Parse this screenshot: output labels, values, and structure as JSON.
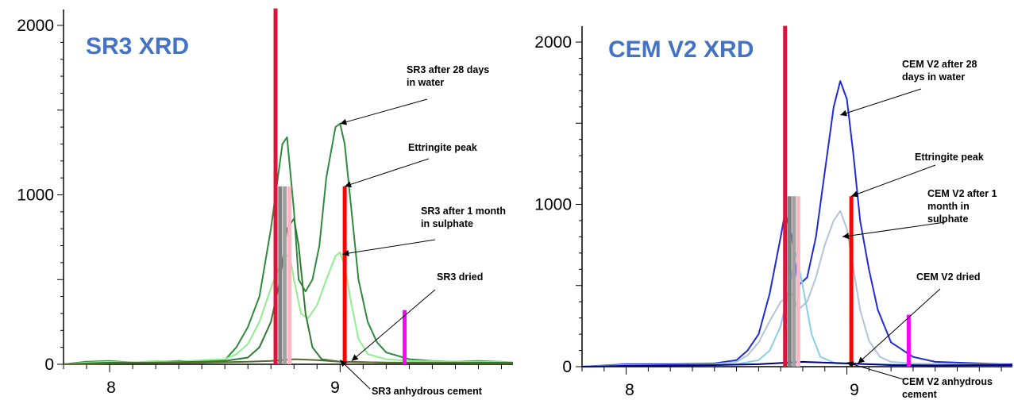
{
  "chart_data": [
    {
      "type": "line",
      "title": "SR3 XRD",
      "xlabel": "",
      "ylabel": "",
      "xlim": [
        7.8,
        9.75
      ],
      "ylim": [
        0,
        2100
      ],
      "x_ticks": [
        "8",
        "9"
      ],
      "y_ticks": [
        "0",
        "1000",
        "2000"
      ],
      "title_color": "#4472c4",
      "series": [
        {
          "name": "SR3 after 28 days in water",
          "color": "#2e8b3e",
          "points": [
            [
              7.8,
              0
            ],
            [
              7.9,
              15
            ],
            [
              8.0,
              20
            ],
            [
              8.1,
              10
            ],
            [
              8.2,
              15
            ],
            [
              8.3,
              20
            ],
            [
              8.4,
              15
            ],
            [
              8.5,
              25
            ],
            [
              8.55,
              100
            ],
            [
              8.6,
              220
            ],
            [
              8.65,
              400
            ],
            [
              8.7,
              800
            ],
            [
              8.75,
              1300
            ],
            [
              8.77,
              1340
            ],
            [
              8.8,
              900
            ],
            [
              8.82,
              500
            ],
            [
              8.85,
              430
            ],
            [
              8.88,
              500
            ],
            [
              8.91,
              700
            ],
            [
              8.94,
              1100
            ],
            [
              8.98,
              1400
            ],
            [
              9.0,
              1420
            ],
            [
              9.02,
              1300
            ],
            [
              9.05,
              900
            ],
            [
              9.08,
              500
            ],
            [
              9.12,
              250
            ],
            [
              9.16,
              130
            ],
            [
              9.2,
              70
            ],
            [
              9.3,
              30
            ],
            [
              9.4,
              20
            ],
            [
              9.5,
              15
            ],
            [
              9.6,
              20
            ],
            [
              9.7,
              15
            ],
            [
              9.75,
              10
            ]
          ]
        },
        {
          "name": "SR3 after 1 month in sulphate",
          "color": "#90ee90",
          "points": [
            [
              7.8,
              0
            ],
            [
              7.9,
              10
            ],
            [
              8.0,
              15
            ],
            [
              8.1,
              10
            ],
            [
              8.2,
              20
            ],
            [
              8.3,
              15
            ],
            [
              8.4,
              25
            ],
            [
              8.5,
              30
            ],
            [
              8.55,
              60
            ],
            [
              8.6,
              120
            ],
            [
              8.65,
              250
            ],
            [
              8.7,
              450
            ],
            [
              8.75,
              620
            ],
            [
              8.78,
              650
            ],
            [
              8.8,
              500
            ],
            [
              8.83,
              300
            ],
            [
              8.86,
              270
            ],
            [
              8.9,
              350
            ],
            [
              8.94,
              500
            ],
            [
              8.98,
              640
            ],
            [
              9.0,
              660
            ],
            [
              9.02,
              580
            ],
            [
              9.05,
              350
            ],
            [
              9.08,
              150
            ],
            [
              9.12,
              60
            ],
            [
              9.2,
              30
            ],
            [
              9.3,
              20
            ],
            [
              9.5,
              15
            ],
            [
              9.7,
              15
            ],
            [
              9.75,
              10
            ]
          ]
        },
        {
          "name": "SR3 dried",
          "color": "#2e7d32",
          "points": [
            [
              7.8,
              0
            ],
            [
              8.0,
              10
            ],
            [
              8.2,
              10
            ],
            [
              8.4,
              15
            ],
            [
              8.5,
              20
            ],
            [
              8.6,
              40
            ],
            [
              8.65,
              100
            ],
            [
              8.7,
              250
            ],
            [
              8.74,
              500
            ],
            [
              8.77,
              800
            ],
            [
              8.8,
              860
            ],
            [
              8.82,
              700
            ],
            [
              8.85,
              300
            ],
            [
              8.88,
              100
            ],
            [
              8.92,
              30
            ],
            [
              9.0,
              15
            ],
            [
              9.2,
              10
            ],
            [
              9.5,
              10
            ],
            [
              9.75,
              10
            ]
          ]
        },
        {
          "name": "SR3 anhydrous cement",
          "color": "#556b2f",
          "points": [
            [
              7.8,
              0
            ],
            [
              8.0,
              5
            ],
            [
              8.2,
              8
            ],
            [
              8.4,
              10
            ],
            [
              8.5,
              12
            ],
            [
              8.6,
              15
            ],
            [
              8.7,
              20
            ],
            [
              8.8,
              30
            ],
            [
              8.9,
              25
            ],
            [
              9.0,
              15
            ],
            [
              9.2,
              10
            ],
            [
              9.4,
              8
            ],
            [
              9.6,
              5
            ],
            [
              9.75,
              5
            ]
          ]
        }
      ],
      "reference_lines": [
        {
          "x": 8.72,
          "height": 2100,
          "color": "#dc143c"
        },
        {
          "x": 8.74,
          "height": 1050,
          "color": "#808080"
        },
        {
          "x": 8.76,
          "height": 1050,
          "color": "#a0a0a0"
        },
        {
          "x": 8.78,
          "height": 1050,
          "color": "#ffb6c1"
        },
        {
          "x": 9.02,
          "height": 1050,
          "color": "#ff0000"
        },
        {
          "x": 9.28,
          "height": 320,
          "color": "#ff00ff"
        }
      ],
      "annotations": [
        {
          "lines": [
            "SR3 after 28 days",
            "in water"
          ],
          "target": [
            9.0,
            1420
          ]
        },
        {
          "lines": [
            "Ettringite peak"
          ],
          "target": [
            9.02,
            1050
          ]
        },
        {
          "lines": [
            "SR3 after 1 month",
            "in sulphate"
          ],
          "target": [
            9.01,
            650
          ]
        },
        {
          "lines": [
            "SR3 dried"
          ],
          "target": [
            9.05,
            20
          ]
        },
        {
          "lines": [
            "SR3 anhydrous cement"
          ],
          "target": [
            9.0,
            25
          ]
        }
      ]
    },
    {
      "type": "line",
      "title": "CEM V2 XRD",
      "xlabel": "",
      "ylabel": "",
      "xlim": [
        7.8,
        9.75
      ],
      "ylim": [
        0,
        2100
      ],
      "x_ticks": [
        "8",
        "9"
      ],
      "y_ticks": [
        "0",
        "1000",
        "2000"
      ],
      "title_color": "#4472c4",
      "series": [
        {
          "name": "CEM V2 after 28 days in water",
          "color": "#1f2bd4",
          "points": [
            [
              7.8,
              0
            ],
            [
              8.0,
              15
            ],
            [
              8.2,
              15
            ],
            [
              8.4,
              20
            ],
            [
              8.5,
              40
            ],
            [
              8.55,
              100
            ],
            [
              8.6,
              200
            ],
            [
              8.65,
              450
            ],
            [
              8.7,
              800
            ],
            [
              8.72,
              950
            ],
            [
              8.75,
              800
            ],
            [
              8.78,
              500
            ],
            [
              8.82,
              550
            ],
            [
              8.86,
              800
            ],
            [
              8.9,
              1200
            ],
            [
              8.94,
              1600
            ],
            [
              8.97,
              1760
            ],
            [
              9.0,
              1650
            ],
            [
              9.03,
              1300
            ],
            [
              9.06,
              900
            ],
            [
              9.1,
              600
            ],
            [
              9.14,
              350
            ],
            [
              9.2,
              150
            ],
            [
              9.3,
              60
            ],
            [
              9.4,
              30
            ],
            [
              9.5,
              25
            ],
            [
              9.6,
              20
            ],
            [
              9.7,
              15
            ],
            [
              9.75,
              15
            ]
          ]
        },
        {
          "name": "CEM V2 after 1 month in sulphate",
          "color": "#b0c4de",
          "points": [
            [
              7.8,
              0
            ],
            [
              8.0,
              10
            ],
            [
              8.2,
              10
            ],
            [
              8.4,
              15
            ],
            [
              8.5,
              30
            ],
            [
              8.55,
              70
            ],
            [
              8.6,
              150
            ],
            [
              8.65,
              280
            ],
            [
              8.7,
              400
            ],
            [
              8.75,
              450
            ],
            [
              8.78,
              350
            ],
            [
              8.82,
              400
            ],
            [
              8.86,
              550
            ],
            [
              8.9,
              750
            ],
            [
              8.94,
              900
            ],
            [
              8.97,
              960
            ],
            [
              9.0,
              850
            ],
            [
              9.03,
              600
            ],
            [
              9.06,
              350
            ],
            [
              9.1,
              160
            ],
            [
              9.15,
              60
            ],
            [
              9.2,
              30
            ],
            [
              9.3,
              20
            ],
            [
              9.5,
              15
            ],
            [
              9.75,
              10
            ]
          ]
        },
        {
          "name": "CEM V2 dried",
          "color": "#87ceeb",
          "points": [
            [
              7.8,
              0
            ],
            [
              8.0,
              10
            ],
            [
              8.3,
              10
            ],
            [
              8.5,
              15
            ],
            [
              8.6,
              40
            ],
            [
              8.65,
              100
            ],
            [
              8.7,
              250
            ],
            [
              8.74,
              500
            ],
            [
              8.77,
              700
            ],
            [
              8.8,
              500
            ],
            [
              8.84,
              200
            ],
            [
              8.88,
              60
            ],
            [
              8.95,
              20
            ],
            [
              9.1,
              15
            ],
            [
              9.4,
              10
            ],
            [
              9.75,
              10
            ]
          ]
        },
        {
          "name": "CEM V2 anhydrous cement",
          "color": "#000080",
          "points": [
            [
              7.8,
              0
            ],
            [
              8.0,
              5
            ],
            [
              8.2,
              8
            ],
            [
              8.4,
              10
            ],
            [
              8.6,
              15
            ],
            [
              8.8,
              30
            ],
            [
              8.9,
              25
            ],
            [
              9.0,
              20
            ],
            [
              9.2,
              10
            ],
            [
              9.4,
              8
            ],
            [
              9.6,
              10
            ],
            [
              9.75,
              10
            ]
          ]
        }
      ],
      "reference_lines": [
        {
          "x": 8.72,
          "height": 2100,
          "color": "#dc143c"
        },
        {
          "x": 8.74,
          "height": 1050,
          "color": "#808080"
        },
        {
          "x": 8.76,
          "height": 1050,
          "color": "#a0a0a0"
        },
        {
          "x": 8.78,
          "height": 1050,
          "color": "#ffb6c1"
        },
        {
          "x": 9.02,
          "height": 1050,
          "color": "#ff0000"
        },
        {
          "x": 9.28,
          "height": 320,
          "color": "#ff00ff"
        }
      ],
      "annotations": [
        {
          "lines": [
            "CEM V2 after 28",
            "days in water"
          ],
          "target": [
            8.97,
            1550
          ]
        },
        {
          "lines": [
            "Ettringite peak"
          ],
          "target": [
            9.02,
            1050
          ]
        },
        {
          "lines": [
            "CEM V2 after 1",
            "month in",
            "sulphate"
          ],
          "target": [
            8.98,
            800
          ]
        },
        {
          "lines": [
            "CEM V2 dried"
          ],
          "target": [
            9.05,
            20
          ]
        },
        {
          "lines": [
            "CEM V2 anhydrous",
            "cement"
          ],
          "target": [
            9.0,
            25
          ]
        }
      ]
    }
  ]
}
